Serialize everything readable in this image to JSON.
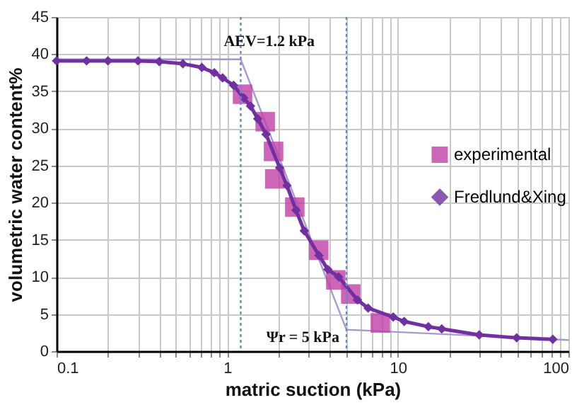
{
  "chart_data": {
    "type": "line",
    "xlabel": "matric suction (kPa)",
    "ylabel": "volumetric water content%",
    "log": "x",
    "grid": true,
    "legend": "right",
    "xlim": [
      0.1,
      100
    ],
    "ylim": [
      0,
      45
    ],
    "xticks": [
      0.1,
      {
        "value": 0.2,
        "label": null
      },
      {
        "value": 0.3,
        "label": null
      },
      {
        "value": 0.4,
        "label": null
      },
      {
        "value": 0.5,
        "label": null
      },
      {
        "value": 0.6,
        "label": null
      },
      {
        "value": 0.7,
        "label": null
      },
      {
        "value": 0.8,
        "label": null
      },
      {
        "value": 0.9,
        "label": null
      },
      1,
      {
        "value": 2,
        "label": null
      },
      {
        "value": 3,
        "label": null
      },
      {
        "value": 4,
        "label": null
      },
      {
        "value": 5,
        "label": null
      },
      {
        "value": 6,
        "label": null
      },
      {
        "value": 7,
        "label": null
      },
      {
        "value": 8,
        "label": null
      },
      {
        "value": 9,
        "label": null
      },
      10,
      {
        "value": 20,
        "label": null
      },
      {
        "value": 30,
        "label": null
      },
      {
        "value": 40,
        "label": null
      },
      {
        "value": 50,
        "label": null
      },
      {
        "value": 60,
        "label": null
      },
      {
        "value": 70,
        "label": null
      },
      {
        "value": 80,
        "label": null
      },
      {
        "value": 90,
        "label": null
      },
      100
    ],
    "yticks": [
      0,
      5,
      10,
      15,
      20,
      25,
      30,
      35,
      40,
      45
    ],
    "series": [
      {
        "name": null,
        "marker": "none",
        "color": "#a898d0",
        "x": [
          0.1,
          1.2,
          5,
          100
        ],
        "values": [
          39.3,
          39.3,
          2.9,
          1.5
        ]
      },
      {
        "name": "experimental",
        "type": "scatter",
        "marker": "square",
        "color": "#c040a8",
        "x": [
          1.23,
          1.67,
          1.87,
          1.9,
          2.49,
          3.44,
          4.33,
          5.3,
          7.9
        ],
        "values": [
          34.6,
          30.9,
          26.9,
          23.2,
          19.4,
          13.6,
          9.6,
          7.7,
          3.8
        ]
      },
      {
        "name": "Fredlund&Xing",
        "marker": "diamond",
        "color": "#7030a0",
        "x": [
          0.1,
          0.15,
          0.2,
          0.3,
          0.4,
          0.55,
          0.71,
          0.84,
          0.94,
          1.09,
          1.25,
          1.37,
          1.51,
          1.69,
          2.03,
          2.24,
          2.53,
          2.83,
          3.45,
          3.89,
          4.5,
          5.8,
          6.7,
          9.4,
          10.9,
          15.1,
          18.1,
          30,
          49.7,
          81
        ],
        "values": [
          39.1,
          39.1,
          39.1,
          39.1,
          39.0,
          38.7,
          38.2,
          37.5,
          36.8,
          35.8,
          34.1,
          33.0,
          31.3,
          29.2,
          24.7,
          22.3,
          19.0,
          16.2,
          12.9,
          11.0,
          10.0,
          6.9,
          5.8,
          4.6,
          4.0,
          3.3,
          3.0,
          2.2,
          1.8,
          1.6
        ]
      }
    ],
    "ref_lines": [
      {
        "axis": "x",
        "value": 1.2,
        "label": "AEV=1.2 kPa",
        "color": "#5b8fd0",
        "line_style": "dotted"
      },
      {
        "axis": "x",
        "value": 5,
        "label": "Ψr = 5 kPa",
        "color": "#5b8fd0",
        "line_style": "dotted"
      }
    ]
  }
}
